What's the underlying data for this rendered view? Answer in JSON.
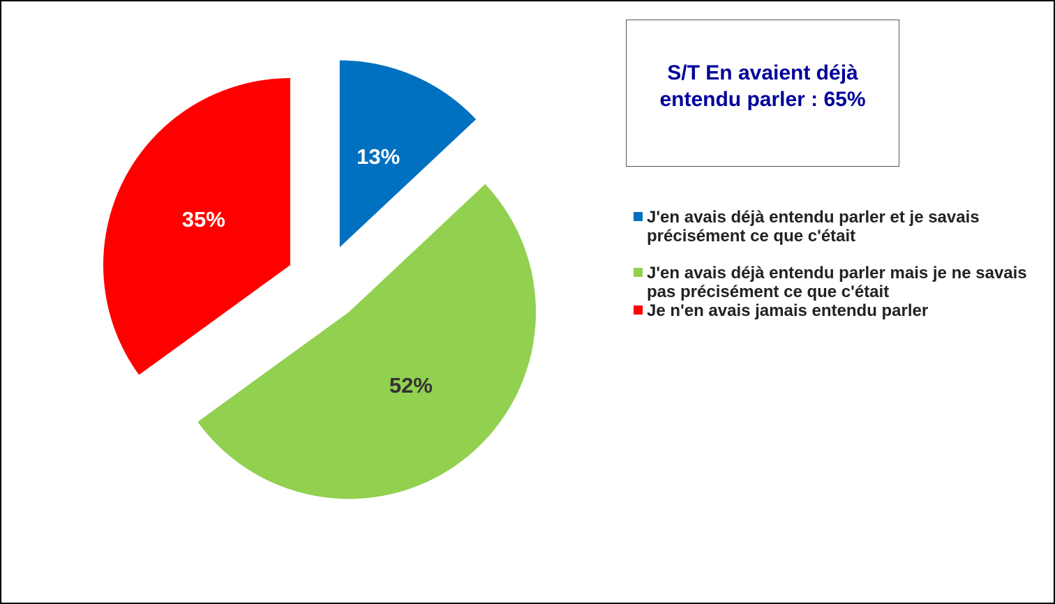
{
  "chart_data": {
    "type": "pie",
    "annotation": "S/T En avaient déjà entendu parler : 65%",
    "categories": [
      "J'en avais déjà entendu parler et je savais précisément ce que c'était",
      "J'en avais déjà entendu parler mais je ne savais pas précisément ce que c'était",
      "Je n'en avais jamais entendu parler"
    ],
    "values": [
      13,
      52,
      35
    ],
    "value_labels": [
      "13%",
      "52%",
      "35%"
    ],
    "colors": [
      "#0070C0",
      "#92D050",
      "#FF0000"
    ],
    "legend": "right"
  }
}
